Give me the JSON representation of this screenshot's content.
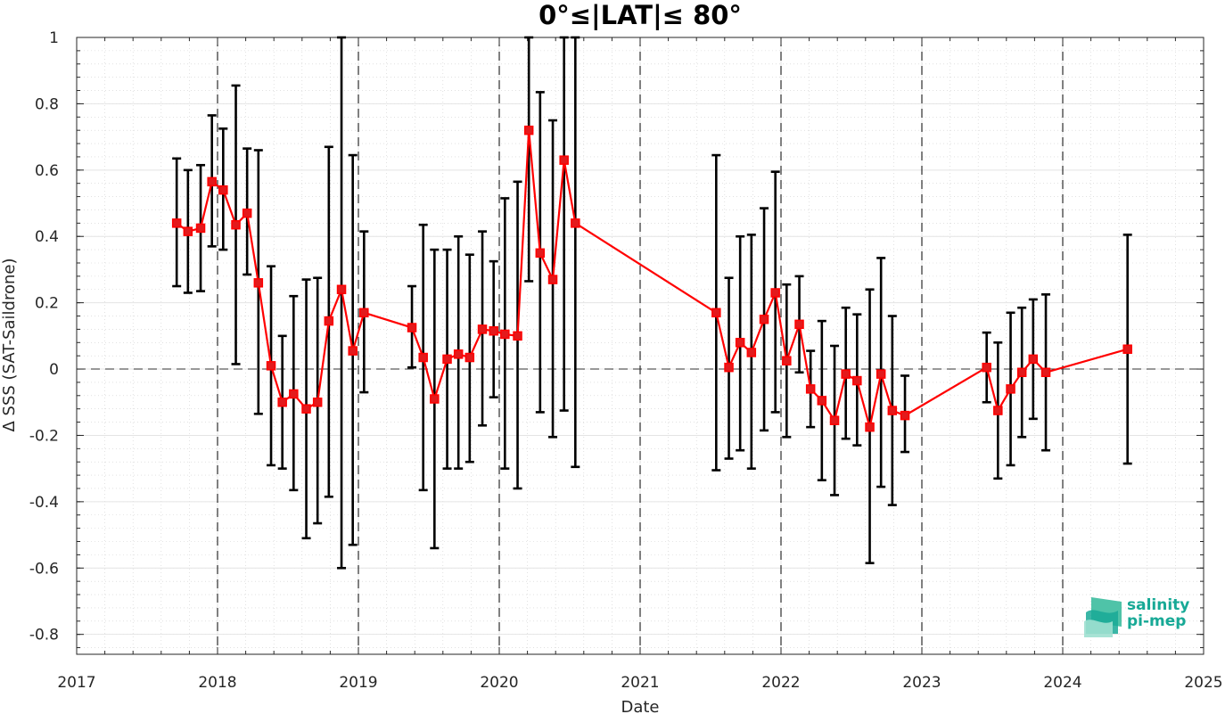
{
  "chart_data": {
    "type": "line",
    "title": "0°≤|LAT|≤ 80°",
    "xlabel": "Date",
    "ylabel": "Δ SSS (SAT-Saildrone)",
    "xlim": [
      2017,
      2025
    ],
    "ylim": [
      -0.86,
      1.0
    ],
    "xticks": [
      2017,
      2018,
      2019,
      2020,
      2021,
      2022,
      2023,
      2024,
      2025
    ],
    "xtick_labels": [
      "2017",
      "2018",
      "2019",
      "2020",
      "2021",
      "2022",
      "2023",
      "2024",
      "2025"
    ],
    "yticks": [
      -0.8,
      -0.6,
      -0.4,
      -0.2,
      0,
      0.2,
      0.4,
      0.6,
      0.8,
      1
    ],
    "ytick_labels": [
      "-0.8",
      "-0.6",
      "-0.4",
      "-0.2",
      "0",
      "0.2",
      "0.4",
      "0.6",
      "0.8",
      "1"
    ],
    "grid": true,
    "reference_line_y": 0,
    "year_dividers": [
      2018,
      2019,
      2020,
      2021,
      2022,
      2023,
      2024
    ],
    "colors": {
      "line": "#ff0000",
      "marker": "#e31a1c",
      "errorbar": "#000000",
      "grid": "#cfcfcf"
    },
    "series": [
      {
        "x": [
          2017.71,
          2017.79,
          2017.88,
          2017.96,
          2018.04,
          2018.13,
          2018.21,
          2018.29,
          2018.38,
          2018.46,
          2018.54,
          2018.63,
          2018.71,
          2018.79,
          2018.88,
          2018.96,
          2019.04,
          2019.38,
          2019.46,
          2019.54,
          2019.63,
          2019.71,
          2019.79,
          2019.88,
          2019.96,
          2020.04,
          2020.13,
          2020.21,
          2020.29,
          2020.38,
          2020.46,
          2020.54,
          2021.54,
          2021.63,
          2021.71,
          2021.79,
          2021.88,
          2021.96,
          2022.04,
          2022.13,
          2022.21,
          2022.29,
          2022.38,
          2022.46,
          2022.54,
          2022.63,
          2022.71,
          2022.79,
          2022.88,
          2023.46,
          2023.54,
          2023.63,
          2023.71,
          2023.79,
          2023.88,
          2024.46
        ],
        "y": [
          0.44,
          0.415,
          0.425,
          0.565,
          0.54,
          0.435,
          0.47,
          0.26,
          0.01,
          -0.1,
          -0.075,
          -0.12,
          -0.1,
          0.145,
          0.24,
          0.055,
          0.17,
          0.125,
          0.035,
          -0.09,
          0.03,
          0.045,
          0.035,
          0.12,
          0.115,
          0.105,
          0.1,
          0.72,
          0.35,
          0.27,
          0.63,
          0.44,
          0.17,
          0.005,
          0.08,
          0.05,
          0.15,
          0.23,
          0.025,
          0.135,
          -0.06,
          -0.095,
          -0.155,
          -0.015,
          -0.035,
          -0.175,
          -0.015,
          -0.125,
          -0.14,
          0.005,
          -0.125,
          -0.06,
          -0.01,
          0.03,
          -0.01,
          0.06
        ],
        "err_low": [
          0.25,
          0.23,
          0.235,
          0.37,
          0.36,
          0.015,
          0.285,
          -0.135,
          -0.29,
          -0.3,
          -0.365,
          -0.51,
          -0.465,
          -0.385,
          -0.6,
          -0.53,
          -0.07,
          0.005,
          -0.365,
          -0.54,
          -0.3,
          -0.3,
          -0.28,
          -0.17,
          -0.085,
          -0.3,
          -0.36,
          0.265,
          -0.13,
          -0.205,
          -0.125,
          -0.295,
          -0.305,
          -0.27,
          -0.245,
          -0.3,
          -0.185,
          -0.13,
          -0.205,
          -0.01,
          -0.175,
          -0.335,
          -0.38,
          -0.21,
          -0.23,
          -0.585,
          -0.355,
          -0.41,
          -0.25,
          -0.1,
          -0.33,
          -0.29,
          -0.205,
          -0.15,
          -0.245,
          -0.285
        ],
        "err_high": [
          0.635,
          0.6,
          0.615,
          0.765,
          0.725,
          0.855,
          0.665,
          0.66,
          0.31,
          0.1,
          0.22,
          0.27,
          0.275,
          0.67,
          1.0,
          0.645,
          0.415,
          0.25,
          0.435,
          0.36,
          0.36,
          0.4,
          0.345,
          0.415,
          0.325,
          0.515,
          0.565,
          1.0,
          0.835,
          0.75,
          1.0,
          1.0,
          0.645,
          0.275,
          0.4,
          0.405,
          0.485,
          0.595,
          0.255,
          0.28,
          0.055,
          0.145,
          0.07,
          0.185,
          0.165,
          0.24,
          0.335,
          0.16,
          -0.02,
          0.11,
          0.08,
          0.17,
          0.185,
          0.21,
          0.225,
          0.405
        ]
      }
    ]
  },
  "logo": {
    "line1": "salinity",
    "line2": "pi-mep"
  }
}
